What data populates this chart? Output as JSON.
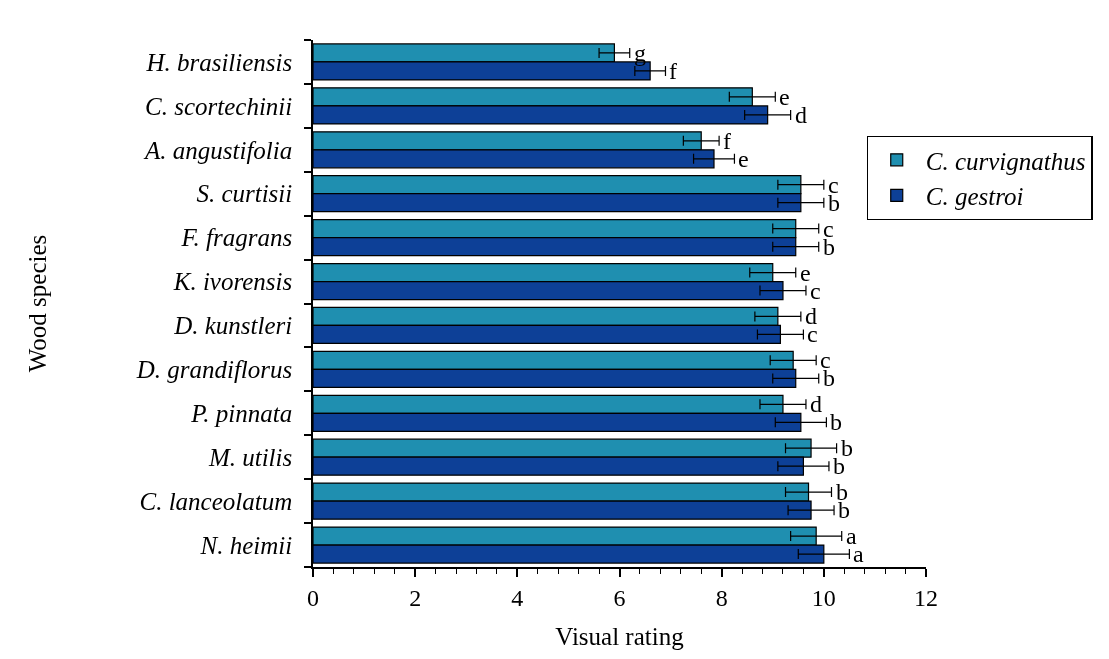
{
  "chart_data": {
    "type": "bar",
    "orientation": "horizontal",
    "xlabel": "Visual rating",
    "ylabel": "Wood species",
    "legend": "right",
    "categories": [
      "H. brasiliensis",
      "C. scortechinii",
      "A. angustifolia",
      "S. curtisii",
      "F. fragrans",
      "K. ivorensis",
      "D. kunstleri",
      "D. grandiflorus",
      "P. pinnata",
      "M. utilis",
      "C. lanceolatum",
      "N. heimii"
    ],
    "xlim": [
      0,
      12
    ],
    "xticks": [
      0,
      {
        "value": 0.4,
        "label": null
      },
      {
        "value": 0.8,
        "label": null
      },
      {
        "value": 1.2,
        "label": null
      },
      {
        "value": 1.6,
        "label": null
      },
      2,
      {
        "value": 2.4,
        "label": null
      },
      {
        "value": 2.8,
        "label": null
      },
      {
        "value": 3.2,
        "label": null
      },
      {
        "value": 3.6,
        "label": null
      },
      4,
      {
        "value": 4.4,
        "label": null
      },
      {
        "value": 4.8,
        "label": null
      },
      {
        "value": 5.2,
        "label": null
      },
      {
        "value": 5.6,
        "label": null
      },
      6,
      {
        "value": 6.4,
        "label": null
      },
      {
        "value": 6.8,
        "label": null
      },
      {
        "value": 7.2,
        "label": null
      },
      {
        "value": 7.6,
        "label": null
      },
      8,
      {
        "value": 8.4,
        "label": null
      },
      {
        "value": 8.8,
        "label": null
      },
      {
        "value": 9.2,
        "label": null
      },
      {
        "value": 9.6,
        "label": null
      },
      10,
      {
        "value": 10.4,
        "label": null
      },
      {
        "value": 10.8,
        "label": null
      },
      {
        "value": 11.2,
        "label": null
      },
      {
        "value": 11.6,
        "label": null
      },
      12
    ],
    "series": [
      {
        "name": "C. curvignathus",
        "color": "#1f8fb0",
        "values": [
          5.9,
          8.6,
          7.6,
          9.55,
          9.45,
          9.0,
          9.1,
          9.4,
          9.2,
          9.75,
          9.7,
          9.85
        ],
        "errors": [
          0.3,
          0.45,
          0.35,
          0.45,
          0.45,
          0.45,
          0.45,
          0.45,
          0.45,
          0.5,
          0.45,
          0.5
        ],
        "value_labels": [
          "g",
          "e",
          "f",
          "c",
          "c",
          "e",
          "d",
          "c",
          "d",
          "b",
          "b",
          "a"
        ]
      },
      {
        "name": "C. gestroi",
        "color": "#0d4097",
        "values": [
          6.6,
          8.9,
          7.85,
          9.55,
          9.45,
          9.2,
          9.15,
          9.45,
          9.55,
          9.6,
          9.75,
          10.0
        ],
        "errors": [
          0.3,
          0.45,
          0.4,
          0.45,
          0.45,
          0.45,
          0.45,
          0.45,
          0.5,
          0.5,
          0.45,
          0.5
        ],
        "value_labels": [
          "f",
          "d",
          "e",
          "b",
          "b",
          "c",
          "c",
          "b",
          "b",
          "b",
          "b",
          "a"
        ]
      }
    ]
  }
}
